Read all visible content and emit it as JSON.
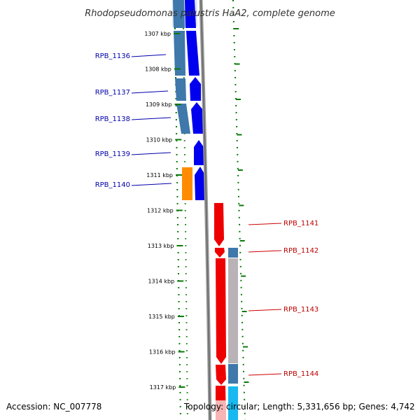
{
  "title": "Rhodopseudomonas palustris HaA2, complete genome",
  "footer": {
    "accession": "Accession: NC_007778",
    "topology": "Topology: circular; Length: 5,331,656 bp; Genes: 4,742"
  },
  "colors": {
    "forward_cds": "#0000ee",
    "reverse_cds": "#ee0000",
    "gene_steelblue": "#3f78aa",
    "gene_orange": "#ff8c00",
    "gene_gray": "#b9b3b7",
    "gene_cyan": "#17b9f0",
    "tick_green": "#0a7a0a",
    "backbone": "#888888"
  },
  "ticks": [
    {
      "label": "1307 kbp",
      "kbp": 1307
    },
    {
      "label": "1308 kbp",
      "kbp": 1308
    },
    {
      "label": "1309 kbp",
      "kbp": 1309
    },
    {
      "label": "1310 kbp",
      "kbp": 1310
    },
    {
      "label": "1311 kbp",
      "kbp": 1311
    },
    {
      "label": "1312 kbp",
      "kbp": 1312
    },
    {
      "label": "1313 kbp",
      "kbp": 1313
    },
    {
      "label": "1314 kbp",
      "kbp": 1314
    },
    {
      "label": "1315 kbp",
      "kbp": 1315
    },
    {
      "label": "1316 kbp",
      "kbp": 1316
    },
    {
      "label": "1317 kbp",
      "kbp": 1317
    }
  ],
  "gene_labels": {
    "left": [
      "RPB_1136",
      "RPB_1137",
      "RPB_1138",
      "RPB_1139",
      "RPB_1140"
    ],
    "right": [
      "RPB_1141",
      "RPB_1142",
      "RPB_1143",
      "RPB_1144"
    ]
  }
}
